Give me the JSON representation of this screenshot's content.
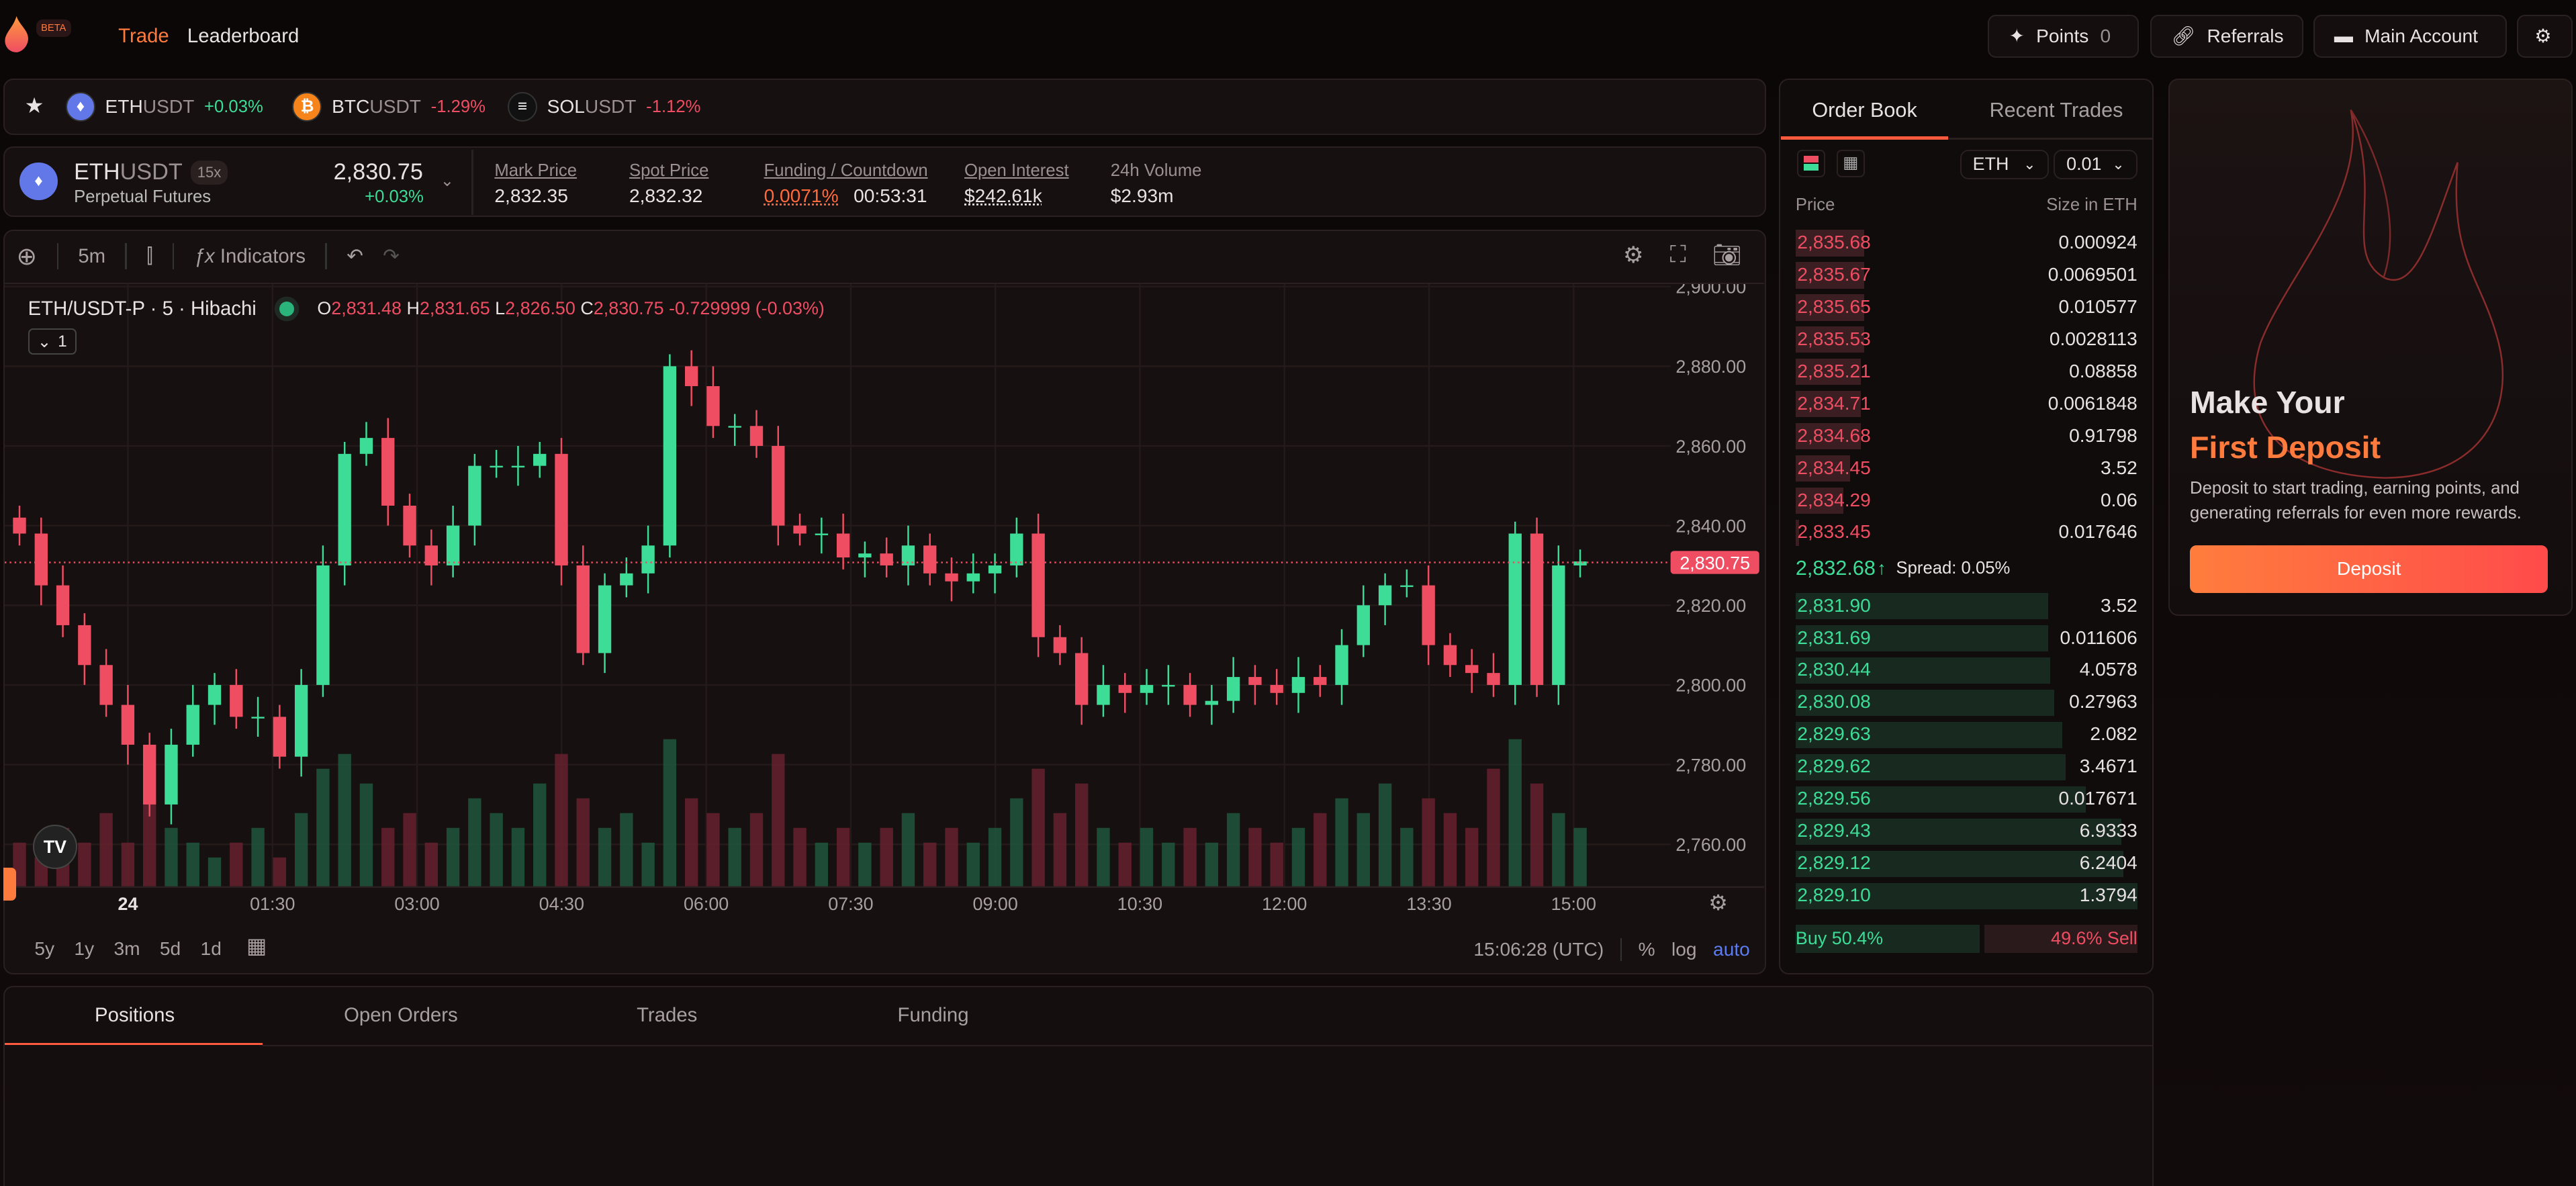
{
  "nav": {
    "beta": "BETA",
    "links": [
      {
        "label": "Trade",
        "active": true
      },
      {
        "label": "Leaderboard",
        "active": false
      }
    ],
    "points_label": "Points",
    "points_value": "0",
    "referrals": "Referrals",
    "account": "Main Account"
  },
  "tickers": [
    {
      "base": "ETH",
      "quote": "USDT",
      "change": "+0.03%",
      "dir": "up",
      "icon": "ethereum-icon",
      "color": "#6278e8"
    },
    {
      "base": "BTC",
      "quote": "USDT",
      "change": "-1.29%",
      "dir": "down",
      "icon": "bitcoin-icon",
      "color": "#f7841a"
    },
    {
      "base": "SOL",
      "quote": "USDT",
      "change": "-1.12%",
      "dir": "down",
      "icon": "solana-icon",
      "color": "#111111"
    }
  ],
  "market": {
    "base": "ETH",
    "quote": "USDT",
    "leverage": "15x",
    "type": "Perpetual Futures",
    "price": "2,830.75",
    "change": "+0.03%",
    "stats": [
      {
        "label": "Mark Price",
        "value": "2,832.35"
      },
      {
        "label": "Spot Price",
        "value": "2,832.32"
      },
      {
        "label": "Funding / Countdown",
        "value": "0.0071%",
        "value2": "00:53:31"
      },
      {
        "label": "Open Interest",
        "value": "$242.61k"
      },
      {
        "label": "24h Volume",
        "value": "$2.93m"
      }
    ]
  },
  "chart": {
    "interval": "5m",
    "indicators": "Indicators",
    "symbol_line": "ETH/USDT-P · 5 · Hibachi",
    "ohlc": {
      "o": "2,831.48",
      "h": "2,831.65",
      "l": "2,826.50",
      "c": "2,830.75",
      "chg": "-0.729999 (-0.03%)"
    },
    "indicator_count": "1",
    "last_price": "2,830.75",
    "price_ticks": [
      "2,900.00",
      "2,880.00",
      "2,860.00",
      "2,840.00",
      "2,820.00",
      "2,800.00",
      "2,780.00",
      "2,760.00"
    ],
    "time_ticks": [
      "24",
      "01:30",
      "03:00",
      "04:30",
      "06:00",
      "07:30",
      "09:00",
      "10:30",
      "12:00",
      "13:30",
      "15:00"
    ],
    "ranges": [
      "5y",
      "1y",
      "3m",
      "5d",
      "1d"
    ],
    "clock": "15:06:28 (UTC)",
    "pct": "%",
    "log": "log",
    "auto": "auto",
    "closes": [
      2838,
      2825,
      2815,
      2805,
      2795,
      2785,
      2770,
      2785,
      2795,
      2800,
      2792,
      2792,
      2782,
      2800,
      2830,
      2858,
      2862,
      2845,
      2835,
      2830,
      2840,
      2855,
      2855,
      2855,
      2858,
      2830,
      2808,
      2825,
      2828,
      2835,
      2880,
      2875,
      2865,
      2865,
      2860,
      2840,
      2838,
      2838,
      2832,
      2833,
      2830,
      2835,
      2828,
      2826,
      2828,
      2830,
      2838,
      2812,
      2808,
      2795,
      2800,
      2798,
      2800,
      2800,
      2795,
      2796,
      2802,
      2800,
      2798,
      2802,
      2800,
      2810,
      2820,
      2825,
      2825,
      2810,
      2805,
      2803,
      2800,
      2838,
      2800,
      2830,
      2831
    ],
    "volumes": [
      3,
      2,
      4,
      3,
      5,
      3,
      6,
      4,
      3,
      2,
      3,
      4,
      2,
      5,
      8,
      9,
      7,
      4,
      5,
      3,
      4,
      6,
      5,
      4,
      7,
      9,
      6,
      4,
      5,
      3,
      10,
      6,
      5,
      4,
      5,
      9,
      4,
      3,
      4,
      3,
      4,
      5,
      3,
      4,
      3,
      4,
      6,
      8,
      5,
      7,
      4,
      3,
      4,
      3,
      4,
      3,
      5,
      4,
      3,
      4,
      5,
      6,
      5,
      7,
      4,
      6,
      5,
      4,
      8,
      10,
      7,
      5,
      4
    ]
  },
  "orderbook": {
    "tabs": [
      "Order Book",
      "Recent Trades"
    ],
    "asset": "ETH",
    "tick": "0.01",
    "col_price": "Price",
    "col_size": "Size in ETH",
    "asks": [
      {
        "price": "2,835.68",
        "size": "0.000924",
        "depth": 0.2
      },
      {
        "price": "2,835.67",
        "size": "0.0069501",
        "depth": 0.2
      },
      {
        "price": "2,835.65",
        "size": "0.010577",
        "depth": 0.2
      },
      {
        "price": "2,835.53",
        "size": "0.0028113",
        "depth": 0.2
      },
      {
        "price": "2,835.21",
        "size": "0.08858",
        "depth": 0.19
      },
      {
        "price": "2,834.71",
        "size": "0.0061848",
        "depth": 0.19
      },
      {
        "price": "2,834.68",
        "size": "0.91798",
        "depth": 0.19
      },
      {
        "price": "2,834.45",
        "size": "3.52",
        "depth": 0.16
      },
      {
        "price": "2,834.29",
        "size": "0.06",
        "depth": 0.14
      },
      {
        "price": "2,833.45",
        "size": "0.017646",
        "depth": 0.01
      }
    ],
    "mid": "2,832.68",
    "spread": "Spread: 0.05%",
    "bids": [
      {
        "price": "2,831.90",
        "size": "3.52",
        "depth": 0.74
      },
      {
        "price": "2,831.69",
        "size": "0.011606",
        "depth": 0.74
      },
      {
        "price": "2,830.44",
        "size": "4.0578",
        "depth": 0.745
      },
      {
        "price": "2,830.08",
        "size": "0.27963",
        "depth": 0.757
      },
      {
        "price": "2,829.63",
        "size": "2.082",
        "depth": 0.78
      },
      {
        "price": "2,829.62",
        "size": "3.4671",
        "depth": 0.79
      },
      {
        "price": "2,829.56",
        "size": "0.017671",
        "depth": 0.85
      },
      {
        "price": "2,829.43",
        "size": "6.9333",
        "depth": 0.953
      },
      {
        "price": "2,829.12",
        "size": "6.2404",
        "depth": 0.96
      },
      {
        "price": "2,829.10",
        "size": "1.3794",
        "depth": 1.0
      }
    ],
    "buy": "Buy 50.4%",
    "sell": "49.6% Sell"
  },
  "deposit": {
    "title1": "Make Your",
    "title2": "First Deposit",
    "body": "Deposit to start trading, earning points, and generating referrals for even more rewards.",
    "button": "Deposit"
  },
  "bottom": {
    "tabs": [
      "Positions",
      "Open Orders",
      "Trades",
      "Funding"
    ]
  },
  "colors": {
    "up": "#3ddc97",
    "down": "#ef4d62",
    "accent": "#ff7a3d"
  }
}
